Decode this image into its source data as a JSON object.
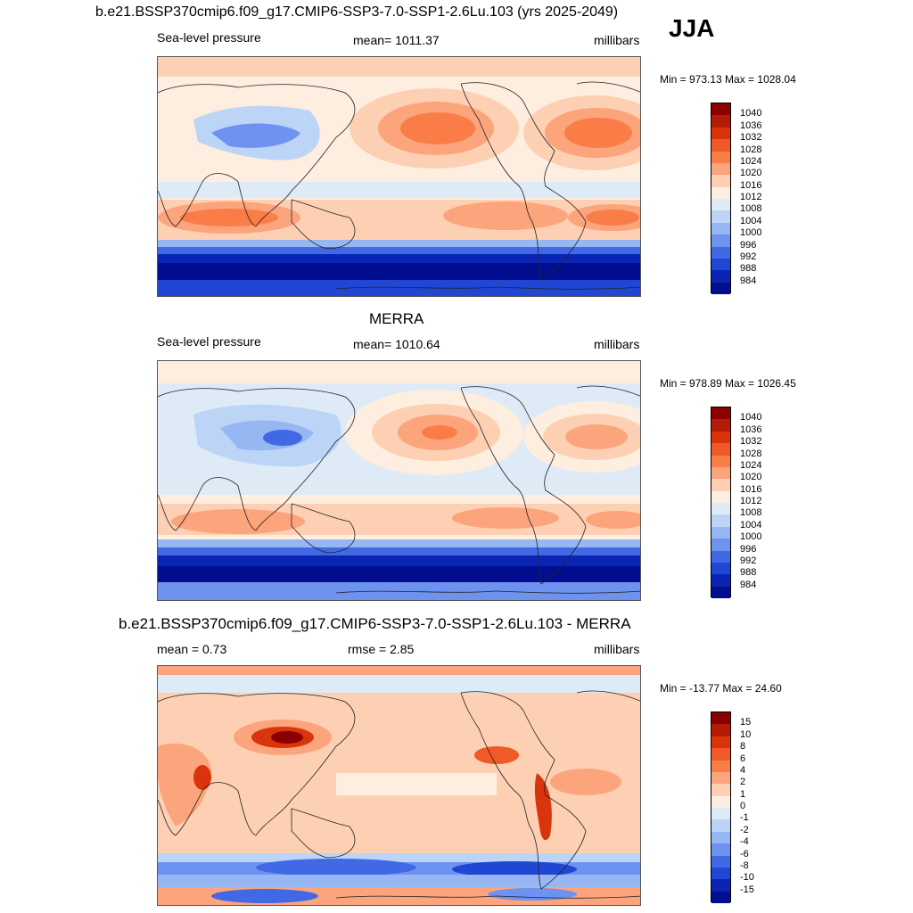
{
  "header": {
    "title": "b.e21.BSSP370cmip6.f09_g17.CMIP6-SSP3-7.0-SSP1-2.6Lu.103 (yrs 2025-2049)",
    "season": "JJA"
  },
  "panels": [
    {
      "id": "model",
      "title": "",
      "left_label": "Sea-level pressure",
      "center_label": "mean= 1011.37",
      "right_label": "millibars",
      "minmax": "Min = 973.13 Max = 1028.04",
      "colorbar": {
        "labels": [
          "1040",
          "1036",
          "1032",
          "1028",
          "1024",
          "1020",
          "1016",
          "1012",
          "1008",
          "1004",
          "1000",
          "996",
          "992",
          "988",
          "984"
        ],
        "colors": [
          "#8b0000",
          "#b51c05",
          "#d9340b",
          "#f05a26",
          "#fa7d48",
          "#fca47c",
          "#fdd0b3",
          "#fdeee0",
          "#deebf7",
          "#bcd4f6",
          "#97b7f3",
          "#6e92ef",
          "#4169e6",
          "#2046d4",
          "#0a25b4",
          "#000e8f"
        ]
      }
    },
    {
      "id": "obs",
      "title": "MERRA",
      "left_label": "Sea-level pressure",
      "center_label": "mean= 1010.64",
      "right_label": "millibars",
      "minmax": "Min = 978.89 Max = 1026.45",
      "colorbar": {
        "labels": [
          "1040",
          "1036",
          "1032",
          "1028",
          "1024",
          "1020",
          "1016",
          "1012",
          "1008",
          "1004",
          "1000",
          "996",
          "992",
          "988",
          "984"
        ],
        "colors": [
          "#8b0000",
          "#b51c05",
          "#d9340b",
          "#f05a26",
          "#fa7d48",
          "#fca47c",
          "#fdd0b3",
          "#fdeee0",
          "#deebf7",
          "#bcd4f6",
          "#97b7f3",
          "#6e92ef",
          "#4169e6",
          "#2046d4",
          "#0a25b4",
          "#000e8f"
        ]
      }
    },
    {
      "id": "diff",
      "title": "b.e21.BSSP370cmip6.f09_g17.CMIP6-SSP3-7.0-SSP1-2.6Lu.103 - MERRA",
      "left_label": "mean =   0.73",
      "center_label": "rmse =   2.85",
      "right_label": "millibars",
      "minmax": "Min = -13.77 Max =  24.60",
      "colorbar": {
        "labels": [
          "15",
          "10",
          "8",
          "6",
          "4",
          "2",
          "1",
          "0",
          "-1",
          "-2",
          "-4",
          "-6",
          "-8",
          "-10",
          "-15"
        ],
        "colors": [
          "#8b0000",
          "#b51c05",
          "#d9340b",
          "#f05a26",
          "#fa7d48",
          "#fca47c",
          "#fdd0b3",
          "#fdeee0",
          "#deebf7",
          "#bcd4f6",
          "#97b7f3",
          "#6e92ef",
          "#4169e6",
          "#2046d4",
          "#0a25b4",
          "#000e8f"
        ]
      }
    }
  ]
}
